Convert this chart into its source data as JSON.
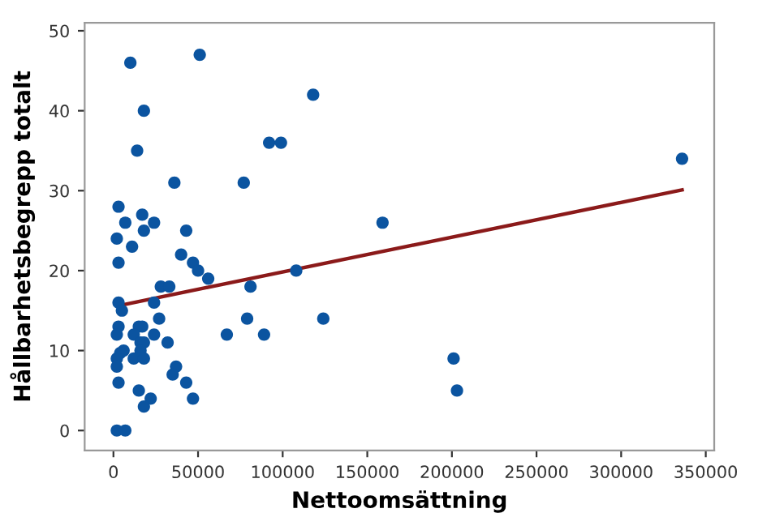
{
  "chart_data": {
    "type": "scatter",
    "xlabel": "Nettoomsättning",
    "ylabel": "Hållbarhetsbegrepp totalt",
    "xlim": [
      -17000,
      355000
    ],
    "xticks": [
      0,
      50000,
      100000,
      150000,
      200000,
      250000,
      300000,
      350000
    ],
    "ylim": [
      -2.5,
      51
    ],
    "yticks": [
      0,
      10,
      20,
      30,
      40,
      50
    ],
    "grid": false,
    "legend": false,
    "marker": "circle",
    "series": [
      {
        "color": "#0b54a0",
        "x": [
          10000,
          51000,
          118000,
          18000,
          14000,
          92000,
          99000,
          36000,
          77000,
          3000,
          17000,
          7000,
          24000,
          2000,
          18000,
          43000,
          11000,
          3000,
          40000,
          47000,
          50000,
          56000,
          108000,
          28000,
          33000,
          81000,
          3000,
          5000,
          24000,
          27000,
          79000,
          124000,
          3000,
          15000,
          17000,
          12000,
          24000,
          2000,
          67000,
          89000,
          32000,
          16000,
          18000,
          6000,
          4000,
          2000,
          12000,
          16000,
          18000,
          2000,
          37000,
          35000,
          3000,
          43000,
          15000,
          47000,
          22000,
          18000,
          2000,
          7000,
          159000,
          201000,
          203000,
          336000
        ],
        "values": [
          46,
          47,
          42,
          40,
          35,
          36,
          36,
          31,
          31,
          28,
          27,
          26,
          26,
          24,
          25,
          25,
          23,
          21,
          22,
          21,
          20,
          19,
          20,
          18,
          18,
          18,
          16,
          15,
          16,
          14,
          14,
          14,
          13,
          13,
          13,
          12,
          12,
          12,
          12,
          12,
          11,
          11,
          11,
          10,
          9.7,
          9,
          9,
          10,
          9,
          8,
          8,
          7,
          6,
          6,
          5,
          4,
          4,
          3,
          0,
          0,
          26,
          9,
          5,
          34
        ]
      },
      {
        "type": "line",
        "color": "#8b1a1a",
        "line_style": "solid",
        "marker": "none",
        "x": [
          5000,
          336000
        ],
        "values": [
          15.7,
          30.1
        ]
      }
    ]
  }
}
